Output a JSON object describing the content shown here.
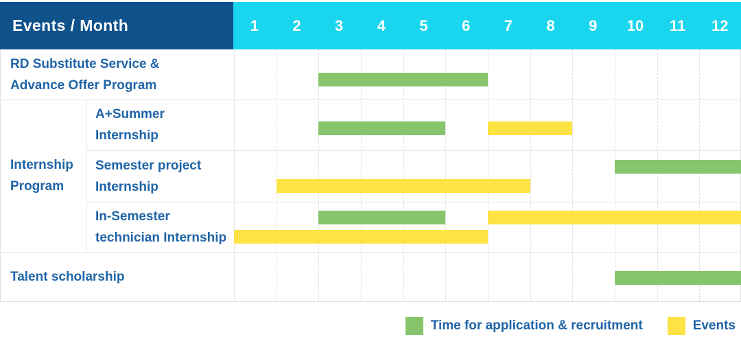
{
  "header": {
    "title": "Events / Month"
  },
  "colors": {
    "header_bg": "#0f518b",
    "month_header_bg": "#1ad5ee",
    "recruitment": "#86c56b",
    "events": "#fde343",
    "label_text": "#1f64a7"
  },
  "chart_data": {
    "type": "table",
    "subtype": "gantt-timeline",
    "title": "Events / Month",
    "x_axis": {
      "title": "Month",
      "ticks": [
        "1",
        "2",
        "3",
        "4",
        "5",
        "6",
        "7",
        "8",
        "9",
        "10",
        "11",
        "12"
      ],
      "range": [
        1,
        12
      ],
      "grid": "vertical-dashed"
    },
    "groups": [
      {
        "label": "Internship\nProgram",
        "row_start": 1,
        "row_end": 3
      }
    ],
    "rows": [
      {
        "label": "RD Substitute Service &\nAdvance Offer Program",
        "bars": [
          {
            "series": "recruitment",
            "start_month": 3,
            "end_month": 6,
            "track": "single"
          }
        ]
      },
      {
        "label": "A+Summer\nInternship",
        "group": "Internship Program",
        "bars": [
          {
            "series": "recruitment",
            "start_month": 3,
            "end_month": 5,
            "track": "single"
          },
          {
            "series": "events",
            "start_month": 7,
            "end_month": 8,
            "track": "single"
          }
        ]
      },
      {
        "label": "Semester project\nInternship",
        "group": "Internship Program",
        "bars": [
          {
            "series": "recruitment",
            "start_month": 10,
            "end_month": 12,
            "track": "upper"
          },
          {
            "series": "events",
            "start_month": 2,
            "end_month": 7,
            "track": "lower"
          }
        ]
      },
      {
        "label": "In-Semester\ntechnician Internship",
        "group": "Internship Program",
        "bars": [
          {
            "series": "recruitment",
            "start_month": 3,
            "end_month": 5,
            "track": "upper"
          },
          {
            "series": "events",
            "start_month": 7,
            "end_month": 12,
            "track": "upper"
          },
          {
            "series": "events",
            "start_month": 1,
            "end_month": 6,
            "track": "lower"
          }
        ]
      },
      {
        "label": "Talent scholarship",
        "bars": [
          {
            "series": "recruitment",
            "start_month": 10,
            "end_month": 12,
            "track": "single"
          }
        ]
      }
    ],
    "legend": [
      {
        "key": "recruitment",
        "label": "Time for application & recruitment",
        "color": "#86c56b"
      },
      {
        "key": "events",
        "label": "Events",
        "color": "#fde343"
      }
    ],
    "legend_position": "bottom-right"
  }
}
